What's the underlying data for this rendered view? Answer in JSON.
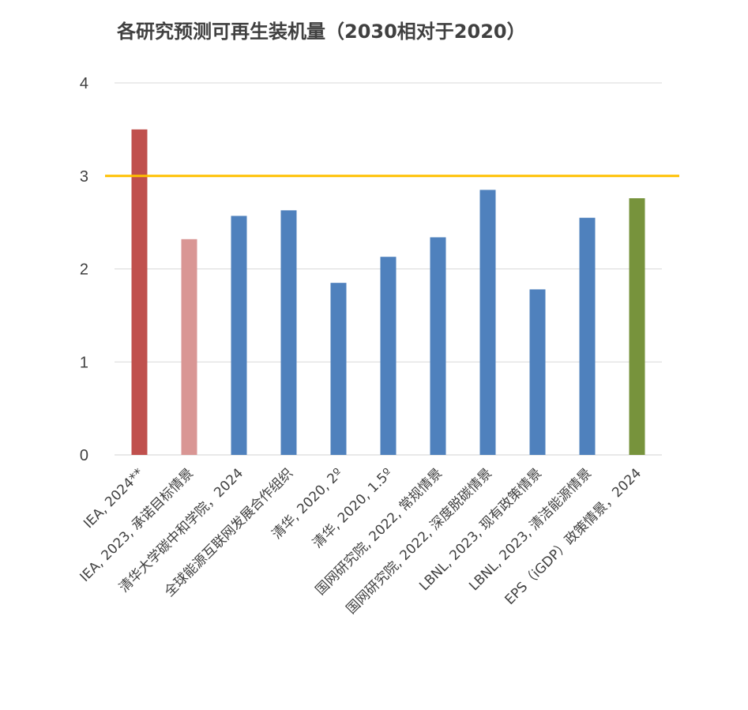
{
  "chart_data": {
    "type": "bar",
    "title": "各研究预测可再生装机量（2030相对于2020）",
    "categories": [
      "IEA, 2024**",
      "IEA, 2023, 承诺目标情景",
      "清华大学碳中和学院，2024",
      "全球能源互联网发展合作组织",
      "清华, 2020, 2º",
      "清华, 2020, 1.5º",
      "国网研究院, 2022, 常规情景",
      "国网研究院, 2022, 深度脱碳情景",
      "LBNL, 2023, 现有政策情景",
      "LBNL, 2023, 清洁能源情景",
      "EPS（iGDP）政策情景，2024"
    ],
    "values": [
      3.5,
      2.32,
      2.57,
      2.63,
      1.85,
      2.13,
      2.34,
      2.85,
      1.78,
      2.55,
      2.76
    ],
    "bar_colors": [
      "#C0504D",
      "#D99694",
      "#4F81BD",
      "#4F81BD",
      "#4F81BD",
      "#4F81BD",
      "#4F81BD",
      "#4F81BD",
      "#4F81BD",
      "#4F81BD",
      "#77933C"
    ],
    "ylim": [
      0,
      4
    ],
    "yticks": [
      "0",
      "1",
      "2",
      "3",
      "4"
    ],
    "reference_line": {
      "value": 3,
      "color": "#FFC000"
    },
    "grid": true,
    "xlabel": "",
    "ylabel": ""
  }
}
